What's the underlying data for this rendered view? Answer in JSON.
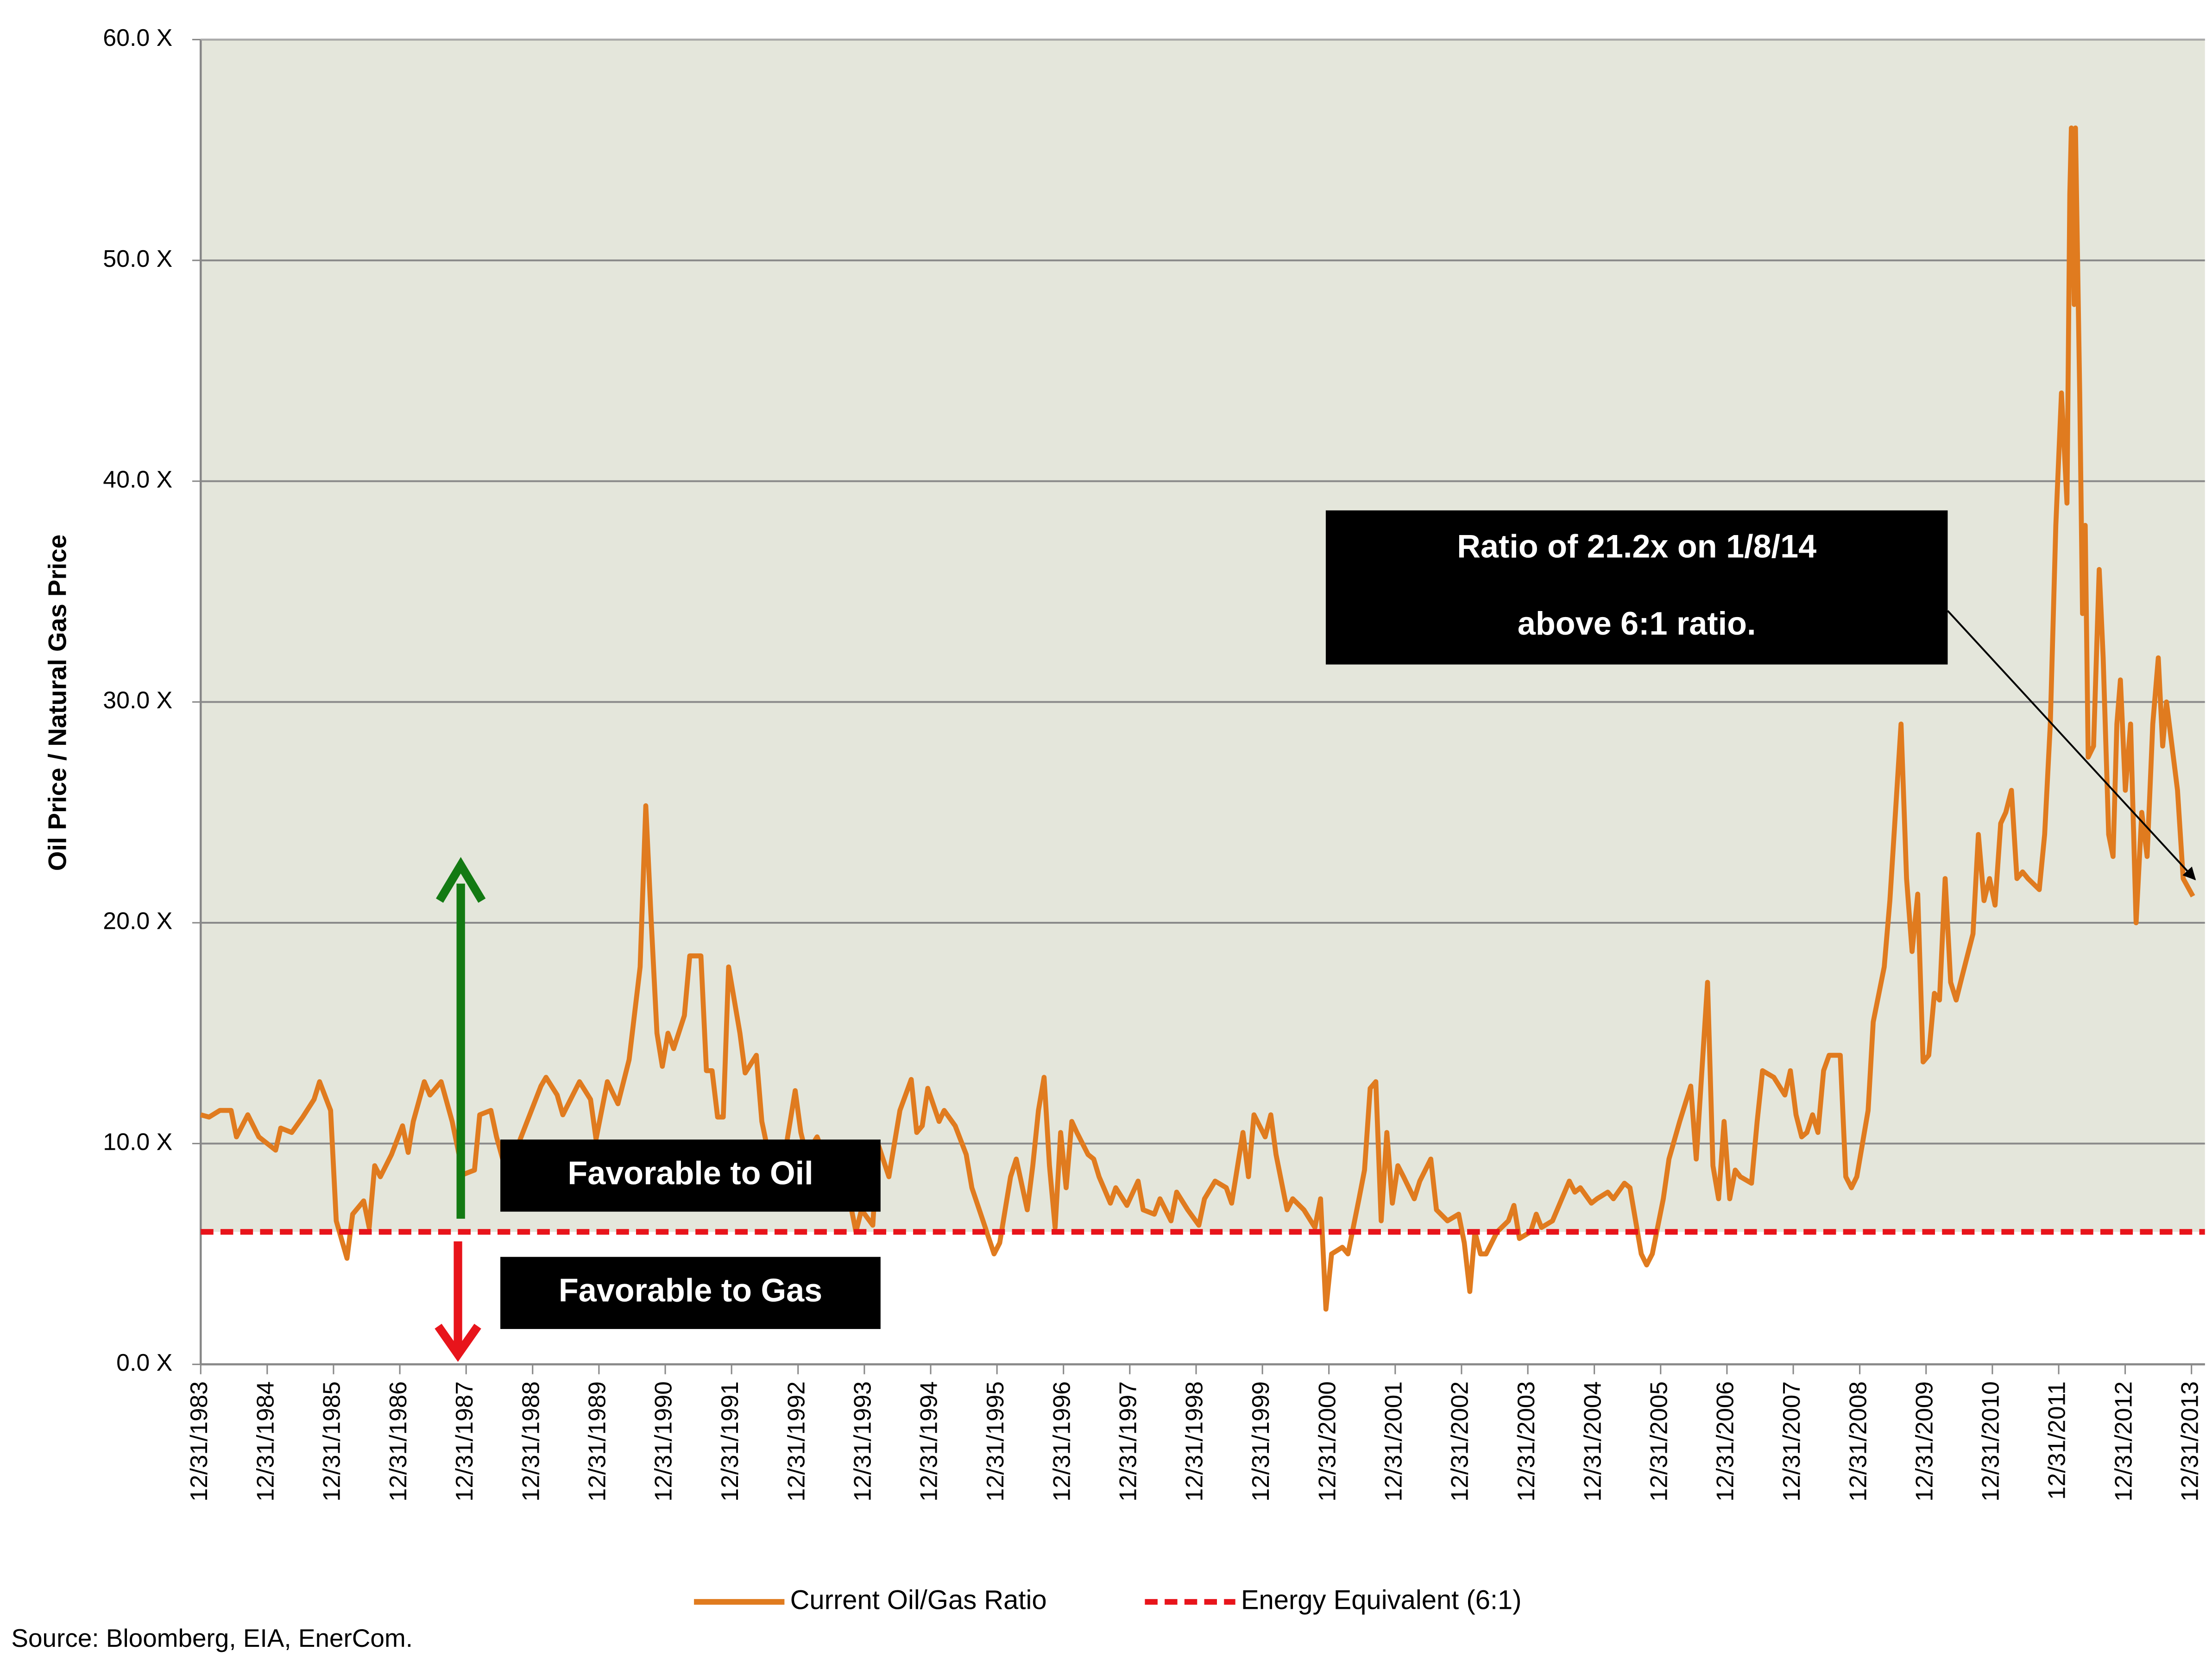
{
  "chart_data": {
    "type": "line",
    "ylabel": "Oil Price / Natural Gas Price",
    "annotations": [
      "Ratio of 21.2x on 1/8/14",
      "above 6:1 ratio.",
      "Favorable to Oil",
      "Favorable to Gas"
    ],
    "source": "Source: Bloomberg, EIA, EnerCom.",
    "xlim": [
      "1983-12-31",
      "2014-03-15"
    ],
    "ylim": [
      0,
      60
    ],
    "grid": true,
    "legend": "bottom",
    "yticks": [
      {
        "value": 0,
        "label": "0.0 X"
      },
      {
        "value": 10,
        "label": "10.0 X"
      },
      {
        "value": 20,
        "label": "20.0 X"
      },
      {
        "value": 30,
        "label": "30.0 X"
      },
      {
        "value": 40,
        "label": "40.0 X"
      },
      {
        "value": 50,
        "label": "50.0 X"
      },
      {
        "value": 60,
        "label": "60.0 X"
      }
    ],
    "xticks": [
      {
        "value": "1983-12-31",
        "label": "12/31/1983"
      },
      {
        "value": "1984-12-31",
        "label": "12/31/1984"
      },
      {
        "value": "1985-12-31",
        "label": "12/31/1985"
      },
      {
        "value": "1986-12-31",
        "label": "12/31/1986"
      },
      {
        "value": "1987-12-31",
        "label": "12/31/1987"
      },
      {
        "value": "1988-12-31",
        "label": "12/31/1988"
      },
      {
        "value": "1989-12-31",
        "label": "12/31/1989"
      },
      {
        "value": "1990-12-31",
        "label": "12/31/1990"
      },
      {
        "value": "1991-12-31",
        "label": "12/31/1991"
      },
      {
        "value": "1992-12-31",
        "label": "12/31/1992"
      },
      {
        "value": "1993-12-31",
        "label": "12/31/1993"
      },
      {
        "value": "1994-12-31",
        "label": "12/31/1994"
      },
      {
        "value": "1995-12-31",
        "label": "12/31/1995"
      },
      {
        "value": "1996-12-31",
        "label": "12/31/1996"
      },
      {
        "value": "1997-12-31",
        "label": "12/31/1997"
      },
      {
        "value": "1998-12-31",
        "label": "12/31/1998"
      },
      {
        "value": "1999-12-31",
        "label": "12/31/1999"
      },
      {
        "value": "2000-12-31",
        "label": "12/31/2000"
      },
      {
        "value": "2001-12-31",
        "label": "12/31/2001"
      },
      {
        "value": "2002-12-31",
        "label": "12/31/2002"
      },
      {
        "value": "2003-12-31",
        "label": "12/31/2003"
      },
      {
        "value": "2004-12-31",
        "label": "12/31/2004"
      },
      {
        "value": "2005-12-31",
        "label": "12/31/2005"
      },
      {
        "value": "2006-12-31",
        "label": "12/31/2006"
      },
      {
        "value": "2007-12-31",
        "label": "12/31/2007"
      },
      {
        "value": "2008-12-31",
        "label": "12/31/2008"
      },
      {
        "value": "2009-12-31",
        "label": "12/31/2009"
      },
      {
        "value": "2010-12-31",
        "label": "12/31/2010"
      },
      {
        "value": "2011-12-31",
        "label": "12/31/2011"
      },
      {
        "value": "2012-12-31",
        "label": "12/31/2012"
      },
      {
        "value": "2013-12-31",
        "label": "12/31/2013"
      }
    ],
    "x": [
      "1983-12-31",
      "1984-02-15",
      "1984-04-15",
      "1984-06-15",
      "1984-07-15",
      "1984-09-15",
      "1984-11-15",
      "1985-02-15",
      "1985-03-15",
      "1985-05-15",
      "1985-07-15",
      "1985-09-15",
      "1985-10-15",
      "1985-12-15",
      "1986-01-15",
      "1986-03-15",
      "1986-04-15",
      "1986-06-15",
      "1986-07-15",
      "1986-08-15",
      "1986-09-15",
      "1986-11-15",
      "1987-01-15",
      "1987-02-15",
      "1987-03-15",
      "1987-05-15",
      "1987-06-15",
      "1987-08-15",
      "1987-10-15",
      "1987-12-15",
      "1988-02-15",
      "1988-03-15",
      "1988-05-15",
      "1988-06-15",
      "1988-08-15",
      "1988-10-15",
      "1989-02-15",
      "1989-03-15",
      "1989-05-15",
      "1989-06-15",
      "1989-09-15",
      "1989-11-15",
      "1989-12-15",
      "1990-02-15",
      "1990-04-15",
      "1990-06-15",
      "1990-08-15",
      "1990-09-15",
      "1990-10-15",
      "1990-11-15",
      "1990-12-15",
      "1991-01-15",
      "1991-02-15",
      "1991-04-15",
      "1991-05-15",
      "1991-07-15",
      "1991-08-15",
      "1991-09-15",
      "1991-10-15",
      "1991-11-15",
      "1991-12-15",
      "1992-02-15",
      "1992-03-15",
      "1992-05-15",
      "1992-06-15",
      "1992-07-15",
      "1992-09-15",
      "1992-10-15",
      "1992-12-15",
      "1993-01-15",
      "1993-02-15",
      "1993-04-15",
      "1993-06-15",
      "1993-07-15",
      "1993-09-15",
      "1993-11-15",
      "1993-12-15",
      "1994-02-15",
      "1994-03-15",
      "1994-05-15",
      "1994-07-15",
      "1994-09-15",
      "1994-10-15",
      "1994-11-15",
      "1994-12-15",
      "1995-02-15",
      "1995-03-15",
      "1995-05-15",
      "1995-07-15",
      "1995-08-15",
      "1995-10-15",
      "1995-12-15",
      "1996-01-15",
      "1996-03-15",
      "1996-04-15",
      "1996-06-15",
      "1996-07-15",
      "1996-08-15",
      "1996-09-15",
      "1996-10-15",
      "1996-11-15",
      "1996-12-15",
      "1997-01-15",
      "1997-02-15",
      "1997-03-15",
      "1997-05-15",
      "1997-06-15",
      "1997-07-15",
      "1997-09-15",
      "1997-10-15",
      "1997-12-15",
      "1998-02-15",
      "1998-03-15",
      "1998-05-15",
      "1998-06-15",
      "1998-08-15",
      "1998-09-15",
      "1998-11-15",
      "1999-01-15",
      "1999-02-15",
      "1999-04-15",
      "1999-06-15",
      "1999-07-15",
      "1999-09-15",
      "1999-10-15",
      "1999-11-15",
      "2000-01-15",
      "2000-02-15",
      "2000-03-15",
      "2000-05-15",
      "2000-06-15",
      "2000-08-15",
      "2000-10-15",
      "2000-11-15",
      "2000-12-15",
      "2001-01-15",
      "2001-03-15",
      "2001-04-15",
      "2001-06-15",
      "2001-07-15",
      "2001-08-15",
      "2001-09-15",
      "2001-10-15",
      "2001-11-15",
      "2001-12-15",
      "2002-01-15",
      "2002-02-15",
      "2002-04-15",
      "2002-05-15",
      "2002-07-15",
      "2002-08-15",
      "2002-10-15",
      "2002-12-15",
      "2003-01-15",
      "2003-02-15",
      "2003-03-15",
      "2003-04-15",
      "2003-05-15",
      "2003-07-15",
      "2003-09-15",
      "2003-10-15",
      "2003-11-15",
      "2004-01-15",
      "2004-02-15",
      "2004-03-15",
      "2004-05-15",
      "2004-08-15",
      "2004-09-15",
      "2004-10-15",
      "2004-12-15",
      "2005-01-15",
      "2005-03-15",
      "2005-04-15",
      "2005-06-15",
      "2005-07-15",
      "2005-08-15",
      "2005-09-15",
      "2005-10-15",
      "2005-11-15",
      "2006-01-15",
      "2006-02-15",
      "2006-04-15",
      "2006-06-15",
      "2006-07-15",
      "2006-09-15",
      "2006-10-15",
      "2006-11-15",
      "2006-12-15",
      "2007-01-15",
      "2007-02-15",
      "2007-03-15",
      "2007-05-15",
      "2007-06-15",
      "2007-07-15",
      "2007-09-15",
      "2007-11-15",
      "2007-12-15",
      "2008-01-15",
      "2008-02-15",
      "2008-03-15",
      "2008-04-15",
      "2008-05-15",
      "2008-06-15",
      "2008-07-15",
      "2008-09-15",
      "2008-10-15",
      "2008-11-15",
      "2008-12-15",
      "2009-02-15",
      "2009-03-15",
      "2009-05-15",
      "2009-06-15",
      "2009-08-15",
      "2009-09-15",
      "2009-10-15",
      "2009-11-15",
      "2009-12-15",
      "2010-01-15",
      "2010-02-15",
      "2010-03-15",
      "2010-04-15",
      "2010-05-15",
      "2010-06-15",
      "2010-07-15",
      "2010-09-15",
      "2010-10-15",
      "2010-11-15",
      "2010-12-15",
      "2011-01-15",
      "2011-02-15",
      "2011-03-15",
      "2011-04-15",
      "2011-05-15",
      "2011-06-15",
      "2011-07-15",
      "2011-09-15",
      "2011-10-15",
      "2011-11-15",
      "2011-12-15",
      "2012-01-15",
      "2012-02-15",
      "2012-03-01",
      "2012-03-10",
      "2012-03-25",
      "2012-04-01",
      "2012-04-25",
      "2012-05-10",
      "2012-05-25",
      "2012-06-10",
      "2012-07-10",
      "2012-08-10",
      "2012-09-01",
      "2012-10-01",
      "2012-10-25",
      "2012-11-15",
      "2012-12-05",
      "2013-01-01",
      "2013-01-30",
      "2013-03-01",
      "2013-04-01",
      "2013-05-01",
      "2013-06-01",
      "2013-07-01",
      "2013-07-25",
      "2013-08-15",
      "2013-09-15",
      "2013-10-15",
      "2013-11-15",
      "2014-01-08"
    ],
    "series": [
      {
        "name": "Current Oil/Gas Ratio",
        "color": "#e07b1f",
        "values": [
          11.3,
          11.2,
          11.5,
          11.5,
          10.3,
          11.3,
          10.3,
          9.7,
          10.7,
          10.5,
          11.2,
          12,
          12.8,
          11.5,
          6.5,
          4.8,
          6.8,
          7.4,
          6.2,
          9,
          8.5,
          9.5,
          10.8,
          9.6,
          11,
          12.8,
          12.2,
          12.8,
          11,
          8.6,
          8.8,
          11.3,
          11.5,
          10.3,
          8.5,
          10,
          12.6,
          13,
          12.2,
          11.3,
          12.8,
          12,
          10.2,
          12.8,
          11.8,
          13.8,
          18,
          25.3,
          20,
          15,
          13.5,
          15,
          14.3,
          15.8,
          18.5,
          18.5,
          13.3,
          13.3,
          11.2,
          11.2,
          18,
          15,
          13.2,
          14,
          11,
          9.8,
          9.5,
          9.3,
          12.4,
          10.5,
          9.5,
          10.3,
          9,
          9.8,
          8.5,
          6,
          7,
          6.3,
          10,
          8.5,
          11.5,
          12.9,
          10.5,
          10.8,
          12.5,
          11,
          11.5,
          10.8,
          9.5,
          8,
          6.5,
          5,
          5.5,
          8.5,
          9.3,
          7,
          9,
          11.5,
          13,
          9,
          6.2,
          10.5,
          8,
          11,
          10.5,
          9.5,
          9.3,
          8.5,
          7.3,
          8,
          7.2,
          8.3,
          7,
          6.8,
          7.5,
          6.5,
          7.8,
          7,
          6.3,
          7.5,
          8.3,
          8,
          7.3,
          10.5,
          8.5,
          11.3,
          10.3,
          11.3,
          9.5,
          7,
          7.5,
          7,
          6.2,
          7.5,
          2.5,
          5,
          5.3,
          5,
          7.5,
          8.8,
          12.5,
          12.8,
          6.5,
          10.5,
          7.3,
          9,
          8.5,
          7.5,
          8.3,
          9.3,
          7,
          6.5,
          6.8,
          5.5,
          3.3,
          6,
          5,
          5,
          6,
          6.5,
          7.2,
          5.7,
          6,
          6.8,
          6.2,
          6.5,
          8.3,
          7.8,
          8,
          7.3,
          7.5,
          7.8,
          7.5,
          8.2,
          8,
          6.5,
          5,
          4.5,
          5,
          7.5,
          9.3,
          11,
          12.6,
          9.3,
          17.3,
          9,
          7.5,
          11,
          7.5,
          8.8,
          8.5,
          8.2,
          11,
          13.3,
          13,
          12.2,
          13.3,
          11.3,
          10.3,
          10.5,
          11.3,
          10.5,
          13.3,
          14,
          14,
          8.5,
          8,
          8.5,
          11.5,
          15.5,
          18,
          21,
          29,
          22,
          18.7,
          21.3,
          13.7,
          14,
          16.8,
          16.5,
          22,
          17.3,
          16.5,
          17.5,
          19.5,
          24,
          21,
          22,
          20.8,
          24.5,
          25,
          26,
          22,
          22.3,
          22,
          21.5,
          24,
          29,
          38,
          44,
          39,
          53,
          56,
          48,
          56,
          44,
          34,
          38,
          27.5,
          28,
          36,
          32,
          24,
          23,
          29,
          31,
          26,
          29,
          20,
          25,
          23,
          29,
          32,
          28,
          30,
          28,
          26,
          22,
          21.2
        ]
      },
      {
        "name": "Energy Equivalent (6:1)",
        "color": "#e8141b",
        "dashed": true,
        "x": [
          "1983-12-31",
          "2014-03-15"
        ],
        "values": [
          6,
          6
        ]
      }
    ]
  }
}
